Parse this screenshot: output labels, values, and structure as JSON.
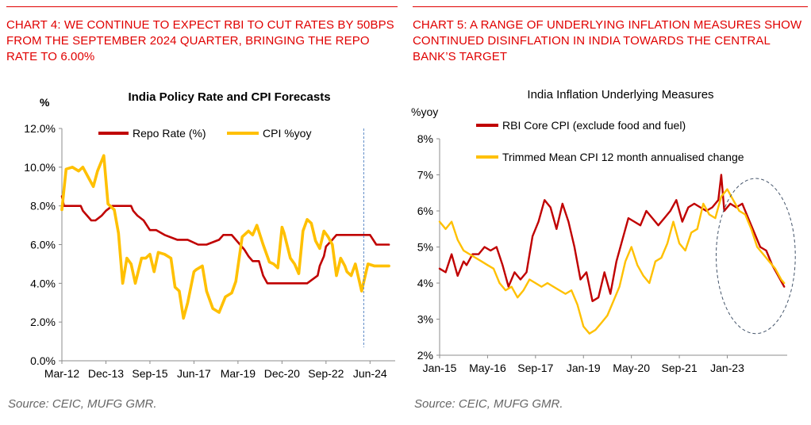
{
  "left_panel": {
    "heading": "CHART 4: WE CONTINUE TO EXPECT RBI TO CUT RATES BY 50BPS FROM THE SEPTEMBER 2024 QUARTER, BRINGING THE REPO RATE TO 6.00%",
    "source": "Source: CEIC, MUFG GMR."
  },
  "right_panel": {
    "heading": "CHART 5: A RANGE OF UNDERLYING INFLATION MEASURES SHOW CONTINUED DISINFLATION IN INDIA TOWARDS THE CENTRAL BANK’S TARGET",
    "source": "Source: CEIC, MUFG GMR."
  },
  "colors": {
    "accent_red": "#e00000",
    "repo_line": "#c00000",
    "cpi_line": "#ffc000",
    "core_line": "#c00000",
    "trimmed_line": "#ffc000",
    "forecast_line": "#5b87c5",
    "ellipse": "#44546a"
  },
  "chart_data": [
    {
      "type": "line",
      "title": "India Policy Rate and CPI Forecasts",
      "ylabel": "%",
      "xlabel": "",
      "ylim": [
        0,
        12
      ],
      "xlim": [
        "2012-03",
        "2025-06"
      ],
      "y_ticks": [
        "0.0%",
        "2.0%",
        "4.0%",
        "6.0%",
        "8.0%",
        "10.0%",
        "12.0%"
      ],
      "x_ticks": [
        "Mar-12",
        "Dec-13",
        "Sep-15",
        "Jun-17",
        "Mar-19",
        "Dec-20",
        "Sep-22",
        "Jun-24"
      ],
      "grid": false,
      "legend": "top-center",
      "forecast_marker": "2024-03",
      "series": [
        {
          "name": "Repo Rate (%)",
          "x": [
            "2012-03",
            "2012-04",
            "2012-08",
            "2012-12",
            "2013-01",
            "2013-03",
            "2013-05",
            "2013-07",
            "2013-10",
            "2013-12",
            "2014-03",
            "2014-06",
            "2014-10",
            "2014-12",
            "2015-01",
            "2015-03",
            "2015-06",
            "2015-09",
            "2015-12",
            "2016-04",
            "2016-10",
            "2017-03",
            "2017-08",
            "2017-12",
            "2018-06",
            "2018-08",
            "2018-12",
            "2019-02",
            "2019-04",
            "2019-06",
            "2019-08",
            "2019-10",
            "2020-01",
            "2020-03",
            "2020-05",
            "2021-06",
            "2021-12",
            "2022-05",
            "2022-06",
            "2022-08",
            "2022-09",
            "2022-12",
            "2023-02",
            "2024-06",
            "2024-09",
            "2025-03"
          ],
          "values": [
            8.5,
            8.0,
            8.0,
            8.0,
            7.75,
            7.5,
            7.25,
            7.25,
            7.5,
            7.75,
            8.0,
            8.0,
            8.0,
            8.0,
            7.75,
            7.5,
            7.25,
            6.75,
            6.75,
            6.5,
            6.25,
            6.25,
            6.0,
            6.0,
            6.25,
            6.5,
            6.5,
            6.25,
            6.0,
            5.75,
            5.4,
            5.15,
            5.15,
            4.4,
            4.0,
            4.0,
            4.0,
            4.4,
            4.9,
            5.4,
            5.9,
            6.25,
            6.5,
            6.5,
            6.0,
            6.0
          ]
        },
        {
          "name": "CPI %yoy",
          "x": [
            "2012-03",
            "2012-05",
            "2012-08",
            "2012-11",
            "2013-01",
            "2013-04",
            "2013-06",
            "2013-08",
            "2013-11",
            "2014-01",
            "2014-04",
            "2014-06",
            "2014-08",
            "2014-10",
            "2014-12",
            "2015-02",
            "2015-05",
            "2015-07",
            "2015-09",
            "2015-11",
            "2016-01",
            "2016-04",
            "2016-07",
            "2016-09",
            "2016-11",
            "2017-01",
            "2017-03",
            "2017-06",
            "2017-07",
            "2017-10",
            "2017-12",
            "2018-03",
            "2018-06",
            "2018-09",
            "2018-12",
            "2019-02",
            "2019-05",
            "2019-08",
            "2019-10",
            "2019-12",
            "2020-03",
            "2020-06",
            "2020-08",
            "2020-10",
            "2020-12",
            "2021-01",
            "2021-04",
            "2021-06",
            "2021-08",
            "2021-10",
            "2021-12",
            "2022-02",
            "2022-04",
            "2022-06",
            "2022-08",
            "2022-10",
            "2022-12",
            "2023-02",
            "2023-04",
            "2023-06",
            "2023-07",
            "2023-09",
            "2023-11",
            "2024-02",
            "2024-05",
            "2024-08",
            "2024-11",
            "2025-03"
          ],
          "values": [
            7.8,
            9.9,
            10.0,
            9.8,
            10.0,
            9.4,
            9.0,
            9.8,
            10.6,
            8.1,
            7.8,
            6.6,
            4.0,
            5.3,
            5.0,
            4.0,
            5.3,
            5.3,
            5.5,
            4.6,
            5.6,
            5.5,
            5.3,
            3.8,
            3.6,
            2.2,
            3.0,
            4.6,
            4.7,
            4.9,
            3.6,
            2.7,
            2.5,
            3.3,
            3.5,
            4.1,
            6.4,
            6.7,
            6.5,
            7.0,
            6.0,
            5.1,
            5.0,
            4.8,
            6.9,
            6.6,
            5.3,
            5.0,
            4.5,
            6.7,
            7.3,
            7.1,
            6.2,
            5.8,
            6.7,
            6.4,
            6.0,
            4.4,
            5.3,
            4.9,
            4.6,
            4.4,
            5.0,
            3.6,
            5.0,
            4.9,
            4.9,
            4.9
          ]
        }
      ]
    },
    {
      "type": "line",
      "title": "India Inflation Underlying Measures",
      "ylabel": "%yoy",
      "xlabel": "",
      "ylim": [
        2,
        8
      ],
      "xlim": [
        "2015-01",
        "2024-09"
      ],
      "y_ticks": [
        "2%",
        "3%",
        "4%",
        "5%",
        "6%",
        "7%",
        "8%"
      ],
      "x_ticks": [
        "Jan-15",
        "May-16",
        "Sep-17",
        "Jan-19",
        "May-20",
        "Sep-21",
        "Jan-23"
      ],
      "grid": false,
      "legend": "top",
      "highlight_ellipse": {
        "from": "2023-01",
        "to": "2024-08",
        "y_from": 2.6,
        "y_to": 6.9
      },
      "series": [
        {
          "name": "RBI Core CPI (exclude food and fuel)",
          "x": [
            "2015-01",
            "2015-03",
            "2015-05",
            "2015-07",
            "2015-09",
            "2015-10",
            "2015-12",
            "2016-02",
            "2016-04",
            "2016-06",
            "2016-08",
            "2016-10",
            "2016-12",
            "2017-02",
            "2017-04",
            "2017-06",
            "2017-08",
            "2017-10",
            "2017-12",
            "2018-02",
            "2018-04",
            "2018-06",
            "2018-08",
            "2018-10",
            "2018-12",
            "2019-02",
            "2019-04",
            "2019-06",
            "2019-08",
            "2019-10",
            "2019-12",
            "2020-02",
            "2020-04",
            "2020-06",
            "2020-08",
            "2020-10",
            "2020-12",
            "2021-02",
            "2021-04",
            "2021-06",
            "2021-08",
            "2021-10",
            "2021-12",
            "2022-02",
            "2022-04",
            "2022-06",
            "2022-08",
            "2022-10",
            "2022-11",
            "2022-12",
            "2023-02",
            "2023-04",
            "2023-06",
            "2023-08",
            "2023-10",
            "2023-12",
            "2024-02",
            "2024-04",
            "2024-06",
            "2024-08"
          ],
          "values": [
            4.4,
            4.3,
            4.8,
            4.2,
            4.6,
            4.5,
            4.8,
            4.8,
            5.0,
            4.9,
            5.0,
            4.5,
            3.9,
            4.3,
            4.1,
            4.3,
            5.3,
            5.7,
            6.3,
            6.1,
            5.5,
            6.2,
            5.7,
            5.0,
            4.1,
            4.3,
            3.5,
            3.6,
            4.3,
            3.7,
            4.6,
            5.2,
            5.8,
            5.7,
            5.6,
            6.0,
            5.8,
            5.6,
            5.8,
            6.0,
            6.3,
            5.7,
            6.1,
            6.2,
            6.1,
            6.0,
            6.1,
            6.3,
            7.0,
            6.0,
            6.2,
            6.1,
            6.2,
            5.8,
            5.4,
            5.0,
            4.9,
            4.5,
            4.2,
            3.9
          ]
        },
        {
          "name": "Trimmed Mean CPI 12 month annualised change",
          "x": [
            "2015-01",
            "2015-03",
            "2015-05",
            "2015-07",
            "2015-09",
            "2015-11",
            "2016-01",
            "2016-03",
            "2016-05",
            "2016-07",
            "2016-09",
            "2016-11",
            "2017-01",
            "2017-03",
            "2017-05",
            "2017-07",
            "2017-09",
            "2017-11",
            "2018-01",
            "2018-03",
            "2018-05",
            "2018-07",
            "2018-09",
            "2018-11",
            "2019-01",
            "2019-03",
            "2019-05",
            "2019-07",
            "2019-09",
            "2019-11",
            "2020-01",
            "2020-03",
            "2020-05",
            "2020-07",
            "2020-09",
            "2020-11",
            "2021-01",
            "2021-03",
            "2021-05",
            "2021-07",
            "2021-09",
            "2021-11",
            "2022-01",
            "2022-03",
            "2022-05",
            "2022-07",
            "2022-09",
            "2022-11",
            "2023-01",
            "2023-03",
            "2023-05",
            "2023-07",
            "2023-09",
            "2023-11",
            "2024-01",
            "2024-03",
            "2024-05",
            "2024-07",
            "2024-08"
          ],
          "values": [
            5.7,
            5.5,
            5.7,
            5.2,
            4.9,
            4.8,
            4.7,
            4.6,
            4.5,
            4.4,
            4.0,
            3.8,
            3.9,
            3.6,
            3.8,
            4.1,
            4.0,
            3.9,
            4.0,
            3.9,
            3.8,
            3.7,
            3.8,
            3.4,
            2.8,
            2.6,
            2.7,
            2.9,
            3.1,
            3.5,
            3.9,
            4.6,
            5.0,
            4.5,
            4.2,
            4.0,
            4.6,
            4.7,
            5.1,
            5.7,
            5.1,
            4.9,
            5.4,
            5.5,
            6.2,
            5.9,
            5.8,
            6.4,
            6.6,
            6.3,
            6.0,
            5.9,
            5.5,
            5.0,
            4.8,
            4.6,
            4.4,
            4.1,
            4.0
          ]
        }
      ]
    }
  ]
}
